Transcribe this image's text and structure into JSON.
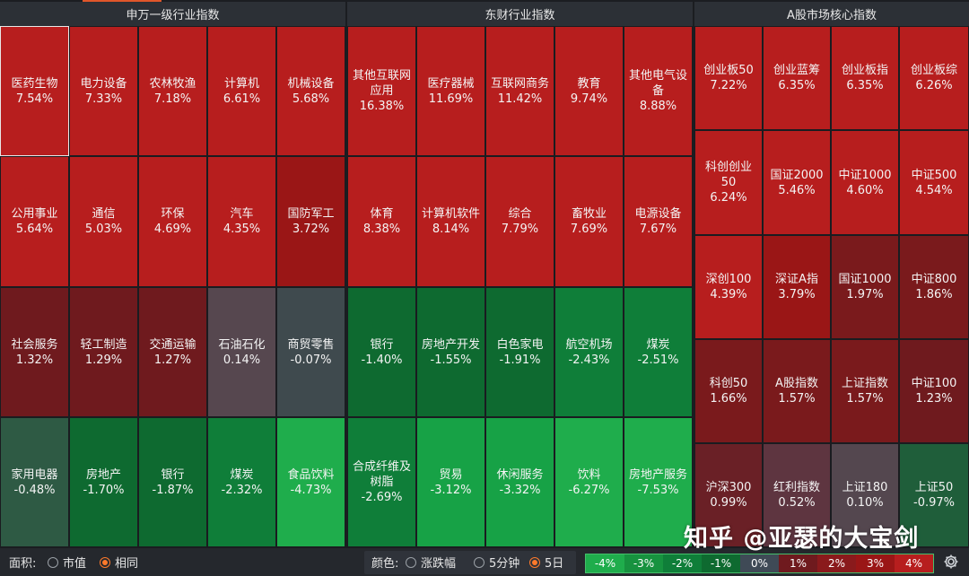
{
  "panels": {
    "sw": {
      "title": "申万一级行业指数",
      "cells": [
        {
          "name": "医药生物",
          "pct": "7.54%",
          "color": "#b71e1e"
        },
        {
          "name": "电力设备",
          "pct": "7.33%",
          "color": "#b71e1e"
        },
        {
          "name": "农林牧渔",
          "pct": "7.18%",
          "color": "#b71e1e"
        },
        {
          "name": "计算机",
          "pct": "6.61%",
          "color": "#b71e1e"
        },
        {
          "name": "机械设备",
          "pct": "5.68%",
          "color": "#b71e1e"
        },
        {
          "name": "公用事业",
          "pct": "5.64%",
          "color": "#b71e1e"
        },
        {
          "name": "通信",
          "pct": "5.03%",
          "color": "#b71e1e"
        },
        {
          "name": "环保",
          "pct": "4.69%",
          "color": "#b71e1e"
        },
        {
          "name": "汽车",
          "pct": "4.35%",
          "color": "#b71e1e"
        },
        {
          "name": "国防军工",
          "pct": "3.72%",
          "color": "#9a1616"
        },
        {
          "name": "社会服务",
          "pct": "1.32%",
          "color": "#6f1a1e"
        },
        {
          "name": "轻工制造",
          "pct": "1.29%",
          "color": "#6f1a1e"
        },
        {
          "name": "交通运输",
          "pct": "1.27%",
          "color": "#6f1a1e"
        },
        {
          "name": "石油石化",
          "pct": "0.14%",
          "color": "#56474f"
        },
        {
          "name": "商贸零售",
          "pct": "-0.07%",
          "color": "#3f4a4e"
        },
        {
          "name": "家用电器",
          "pct": "-0.48%",
          "color": "#2e5a44"
        },
        {
          "name": "房地产",
          "pct": "-1.70%",
          "color": "#0e6a30"
        },
        {
          "name": "银行",
          "pct": "-1.87%",
          "color": "#0e6a30"
        },
        {
          "name": "煤炭",
          "pct": "-2.32%",
          "color": "#0f7e39"
        },
        {
          "name": "食品饮料",
          "pct": "-4.73%",
          "color": "#1fad4c"
        }
      ]
    },
    "df": {
      "title": "东财行业指数",
      "cells": [
        {
          "name": "其他互联网应用",
          "pct": "16.38%",
          "color": "#b71e1e"
        },
        {
          "name": "医疗器械",
          "pct": "11.69%",
          "color": "#b71e1e"
        },
        {
          "name": "互联网商务",
          "pct": "11.42%",
          "color": "#b71e1e"
        },
        {
          "name": "教育",
          "pct": "9.74%",
          "color": "#b71e1e"
        },
        {
          "name": "其他电气设备",
          "pct": "8.88%",
          "color": "#b71e1e"
        },
        {
          "name": "体育",
          "pct": "8.38%",
          "color": "#b71e1e"
        },
        {
          "name": "计算机软件",
          "pct": "8.14%",
          "color": "#b71e1e"
        },
        {
          "name": "综合",
          "pct": "7.79%",
          "color": "#b71e1e"
        },
        {
          "name": "畜牧业",
          "pct": "7.69%",
          "color": "#b71e1e"
        },
        {
          "name": "电源设备",
          "pct": "7.67%",
          "color": "#b71e1e"
        },
        {
          "name": "银行",
          "pct": "-1.40%",
          "color": "#0e6a30"
        },
        {
          "name": "房地产开发",
          "pct": "-1.55%",
          "color": "#0e6a30"
        },
        {
          "name": "白色家电",
          "pct": "-1.91%",
          "color": "#0e6a30"
        },
        {
          "name": "航空机场",
          "pct": "-2.43%",
          "color": "#0f7e39"
        },
        {
          "name": "煤炭",
          "pct": "-2.51%",
          "color": "#0f7e39"
        },
        {
          "name": "合成纤维及树脂",
          "pct": "-2.69%",
          "color": "#0f7e39"
        },
        {
          "name": "贸易",
          "pct": "-3.12%",
          "color": "#17a246"
        },
        {
          "name": "休闲服务",
          "pct": "-3.32%",
          "color": "#17a246"
        },
        {
          "name": "饮料",
          "pct": "-6.27%",
          "color": "#1fad4c"
        },
        {
          "name": "房地产服务",
          "pct": "-7.53%",
          "color": "#1fad4c"
        }
      ]
    },
    "a": {
      "title": "A股市场核心指数",
      "cells": [
        {
          "name": "创业板50",
          "pct": "7.22%",
          "color": "#b71e1e"
        },
        {
          "name": "创业蓝筹",
          "pct": "6.35%",
          "color": "#b71e1e"
        },
        {
          "name": "创业板指",
          "pct": "6.35%",
          "color": "#b71e1e"
        },
        {
          "name": "创业板综",
          "pct": "6.26%",
          "color": "#b71e1e"
        },
        {
          "name": "科创创业50",
          "pct": "6.24%",
          "color": "#b71e1e"
        },
        {
          "name": "国证2000",
          "pct": "5.46%",
          "color": "#b71e1e"
        },
        {
          "name": "中证1000",
          "pct": "4.60%",
          "color": "#b71e1e"
        },
        {
          "name": "中证500",
          "pct": "4.54%",
          "color": "#b71e1e"
        },
        {
          "name": "深创100",
          "pct": "4.39%",
          "color": "#b71e1e"
        },
        {
          "name": "深证A指",
          "pct": "3.79%",
          "color": "#9a1616"
        },
        {
          "name": "国证1000",
          "pct": "1.97%",
          "color": "#7a1a1c"
        },
        {
          "name": "中证800",
          "pct": "1.86%",
          "color": "#7a1a1c"
        },
        {
          "name": "科创50",
          "pct": "1.66%",
          "color": "#7a1a1c"
        },
        {
          "name": "A股指数",
          "pct": "1.57%",
          "color": "#7a1a1c"
        },
        {
          "name": "上证指数",
          "pct": "1.57%",
          "color": "#7a1a1c"
        },
        {
          "name": "中证100",
          "pct": "1.23%",
          "color": "#6f1a1e"
        },
        {
          "name": "沪深300",
          "pct": "0.99%",
          "color": "#6a2026"
        },
        {
          "name": "红利指数",
          "pct": "0.52%",
          "color": "#5e3540"
        },
        {
          "name": "上证180",
          "pct": "0.10%",
          "color": "#54474f"
        },
        {
          "name": "上证50",
          "pct": "-0.97%",
          "color": "#1f5e3a"
        }
      ]
    }
  },
  "footer": {
    "area_label": "面积:",
    "area_options": [
      {
        "label": "市值",
        "selected": false
      },
      {
        "label": "相同",
        "selected": true
      }
    ],
    "color_label": "颜色:",
    "color_options": [
      {
        "label": "涨跌幅",
        "selected": false
      },
      {
        "label": "5分钟",
        "selected": false
      },
      {
        "label": "5日",
        "selected": true
      }
    ],
    "legend": [
      {
        "label": "-4%",
        "color": "#1fad4c"
      },
      {
        "label": "-3%",
        "color": "#17923f"
      },
      {
        "label": "-2%",
        "color": "#0f7e39"
      },
      {
        "label": "-1%",
        "color": "#0e6a30"
      },
      {
        "label": "0%",
        "color": "#3f4a56"
      },
      {
        "label": "1%",
        "color": "#6f1a1e"
      },
      {
        "label": "2%",
        "color": "#8a1a1c"
      },
      {
        "label": "3%",
        "color": "#9a1616"
      },
      {
        "label": "4%",
        "color": "#b71e1e"
      }
    ],
    "settings_icon": "gear-icon"
  },
  "watermark": "知乎 @亚瑟的大宝剑"
}
